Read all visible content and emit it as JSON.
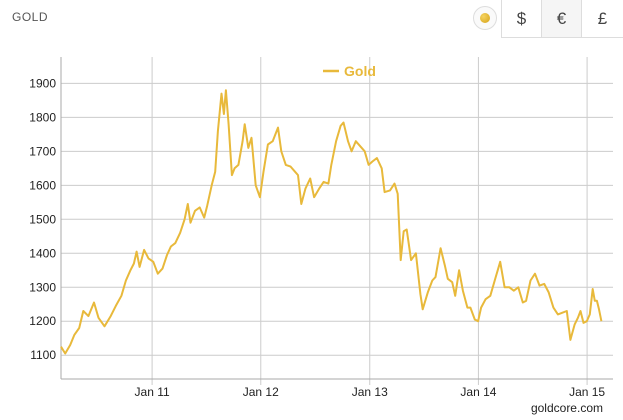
{
  "header": {
    "title": "GOLD",
    "currencies": [
      {
        "symbol": "$"
      },
      {
        "symbol": "€"
      },
      {
        "symbol": "£"
      }
    ]
  },
  "credit": "goldcore.com",
  "colors": {
    "series": "#e8b93b",
    "grid": "#cccccc",
    "axis": "#aaaaaa"
  },
  "chart_data": {
    "type": "line",
    "title": "",
    "xlabel": "",
    "ylabel": "",
    "legend": {
      "position": "top-center"
    },
    "grid": true,
    "xlim": [
      "2010-03-01",
      "2015-02-10"
    ],
    "ylim": [
      1030,
      1960
    ],
    "x_ticks": [
      "Jan 11",
      "Jan 12",
      "Jan 13",
      "Jan 14",
      "Jan 15"
    ],
    "y_ticks": [
      1100,
      1200,
      1300,
      1400,
      1500,
      1600,
      1700,
      1800,
      1900
    ],
    "series": [
      {
        "name": "Gold",
        "color": "#e8b93b",
        "points": [
          [
            "2010-03-01",
            1125
          ],
          [
            "2010-03-15",
            1105
          ],
          [
            "2010-04-01",
            1130
          ],
          [
            "2010-04-15",
            1160
          ],
          [
            "2010-05-01",
            1180
          ],
          [
            "2010-05-15",
            1230
          ],
          [
            "2010-06-01",
            1215
          ],
          [
            "2010-06-20",
            1255
          ],
          [
            "2010-07-05",
            1210
          ],
          [
            "2010-07-25",
            1185
          ],
          [
            "2010-08-15",
            1215
          ],
          [
            "2010-09-01",
            1245
          ],
          [
            "2010-09-20",
            1275
          ],
          [
            "2010-10-05",
            1320
          ],
          [
            "2010-10-20",
            1350
          ],
          [
            "2010-11-01",
            1370
          ],
          [
            "2010-11-10",
            1405
          ],
          [
            "2010-11-20",
            1360
          ],
          [
            "2010-12-05",
            1410
          ],
          [
            "2010-12-20",
            1385
          ],
          [
            "2011-01-05",
            1375
          ],
          [
            "2011-01-20",
            1340
          ],
          [
            "2011-02-05",
            1355
          ],
          [
            "2011-02-20",
            1395
          ],
          [
            "2011-03-05",
            1420
          ],
          [
            "2011-03-20",
            1430
          ],
          [
            "2011-04-05",
            1460
          ],
          [
            "2011-04-20",
            1500
          ],
          [
            "2011-05-01",
            1545
          ],
          [
            "2011-05-10",
            1490
          ],
          [
            "2011-05-25",
            1525
          ],
          [
            "2011-06-10",
            1535
          ],
          [
            "2011-06-25",
            1505
          ],
          [
            "2011-07-05",
            1540
          ],
          [
            "2011-07-20",
            1600
          ],
          [
            "2011-08-01",
            1640
          ],
          [
            "2011-08-10",
            1760
          ],
          [
            "2011-08-22",
            1870
          ],
          [
            "2011-08-30",
            1810
          ],
          [
            "2011-09-06",
            1880
          ],
          [
            "2011-09-15",
            1780
          ],
          [
            "2011-09-26",
            1630
          ],
          [
            "2011-10-05",
            1650
          ],
          [
            "2011-10-18",
            1660
          ],
          [
            "2011-11-01",
            1730
          ],
          [
            "2011-11-08",
            1780
          ],
          [
            "2011-11-20",
            1710
          ],
          [
            "2011-12-01",
            1740
          ],
          [
            "2011-12-15",
            1600
          ],
          [
            "2011-12-29",
            1565
          ],
          [
            "2012-01-10",
            1640
          ],
          [
            "2012-01-25",
            1720
          ],
          [
            "2012-02-10",
            1730
          ],
          [
            "2012-02-28",
            1770
          ],
          [
            "2012-03-10",
            1700
          ],
          [
            "2012-03-25",
            1660
          ],
          [
            "2012-04-10",
            1655
          ],
          [
            "2012-04-25",
            1640
          ],
          [
            "2012-05-05",
            1630
          ],
          [
            "2012-05-16",
            1545
          ],
          [
            "2012-05-30",
            1590
          ],
          [
            "2012-06-15",
            1620
          ],
          [
            "2012-06-28",
            1565
          ],
          [
            "2012-07-15",
            1590
          ],
          [
            "2012-07-30",
            1610
          ],
          [
            "2012-08-15",
            1605
          ],
          [
            "2012-08-25",
            1660
          ],
          [
            "2012-09-10",
            1730
          ],
          [
            "2012-09-25",
            1775
          ],
          [
            "2012-10-05",
            1785
          ],
          [
            "2012-10-20",
            1730
          ],
          [
            "2012-11-01",
            1700
          ],
          [
            "2012-11-15",
            1730
          ],
          [
            "2012-11-30",
            1715
          ],
          [
            "2012-12-15",
            1700
          ],
          [
            "2012-12-28",
            1660
          ],
          [
            "2013-01-10",
            1670
          ],
          [
            "2013-01-25",
            1680
          ],
          [
            "2013-02-10",
            1650
          ],
          [
            "2013-02-20",
            1580
          ],
          [
            "2013-03-10",
            1585
          ],
          [
            "2013-03-25",
            1605
          ],
          [
            "2013-04-05",
            1575
          ],
          [
            "2013-04-15",
            1380
          ],
          [
            "2013-04-25",
            1465
          ],
          [
            "2013-05-05",
            1470
          ],
          [
            "2013-05-20",
            1380
          ],
          [
            "2013-06-05",
            1400
          ],
          [
            "2013-06-20",
            1280
          ],
          [
            "2013-06-28",
            1235
          ],
          [
            "2013-07-15",
            1285
          ],
          [
            "2013-07-30",
            1320
          ],
          [
            "2013-08-10",
            1330
          ],
          [
            "2013-08-27",
            1415
          ],
          [
            "2013-09-10",
            1365
          ],
          [
            "2013-09-20",
            1325
          ],
          [
            "2013-10-05",
            1315
          ],
          [
            "2013-10-15",
            1275
          ],
          [
            "2013-10-28",
            1350
          ],
          [
            "2013-11-10",
            1290
          ],
          [
            "2013-11-25",
            1240
          ],
          [
            "2013-12-05",
            1240
          ],
          [
            "2013-12-20",
            1205
          ],
          [
            "2013-12-31",
            1200
          ],
          [
            "2014-01-10",
            1240
          ],
          [
            "2014-01-25",
            1265
          ],
          [
            "2014-02-10",
            1275
          ],
          [
            "2014-02-28",
            1330
          ],
          [
            "2014-03-15",
            1375
          ],
          [
            "2014-03-30",
            1300
          ],
          [
            "2014-04-15",
            1300
          ],
          [
            "2014-04-30",
            1290
          ],
          [
            "2014-05-15",
            1300
          ],
          [
            "2014-05-30",
            1255
          ],
          [
            "2014-06-10",
            1260
          ],
          [
            "2014-06-25",
            1320
          ],
          [
            "2014-07-10",
            1340
          ],
          [
            "2014-07-25",
            1305
          ],
          [
            "2014-08-10",
            1310
          ],
          [
            "2014-08-25",
            1285
          ],
          [
            "2014-09-10",
            1240
          ],
          [
            "2014-09-25",
            1220
          ],
          [
            "2014-10-10",
            1225
          ],
          [
            "2014-10-25",
            1230
          ],
          [
            "2014-11-06",
            1145
          ],
          [
            "2014-11-20",
            1190
          ],
          [
            "2014-12-01",
            1210
          ],
          [
            "2014-12-10",
            1230
          ],
          [
            "2014-12-20",
            1195
          ],
          [
            "2014-12-31",
            1200
          ],
          [
            "2015-01-10",
            1220
          ],
          [
            "2015-01-20",
            1295
          ],
          [
            "2015-01-27",
            1260
          ],
          [
            "2015-02-03",
            1260
          ],
          [
            "2015-02-10",
            1235
          ],
          [
            "2015-02-18",
            1200
          ]
        ]
      }
    ]
  }
}
